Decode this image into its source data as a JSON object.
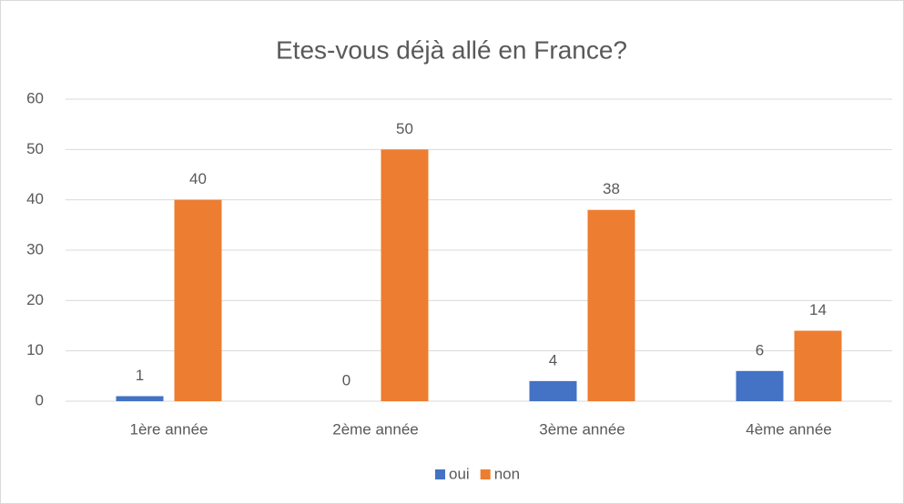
{
  "chart_data": {
    "type": "bar",
    "title": "Etes-vous déjà allé en France?",
    "categories": [
      "1ère année",
      "2ème année",
      "3ème année",
      "4ème année"
    ],
    "series": [
      {
        "name": "oui",
        "color": "#4472c4",
        "values": [
          1,
          0,
          4,
          6
        ]
      },
      {
        "name": "non",
        "color": "#ed7d31",
        "values": [
          40,
          50,
          38,
          14
        ]
      }
    ],
    "ylim": [
      0,
      60
    ],
    "yticks": [
      0,
      10,
      20,
      30,
      40,
      50,
      60
    ],
    "grid": true,
    "legend": "bottom"
  }
}
